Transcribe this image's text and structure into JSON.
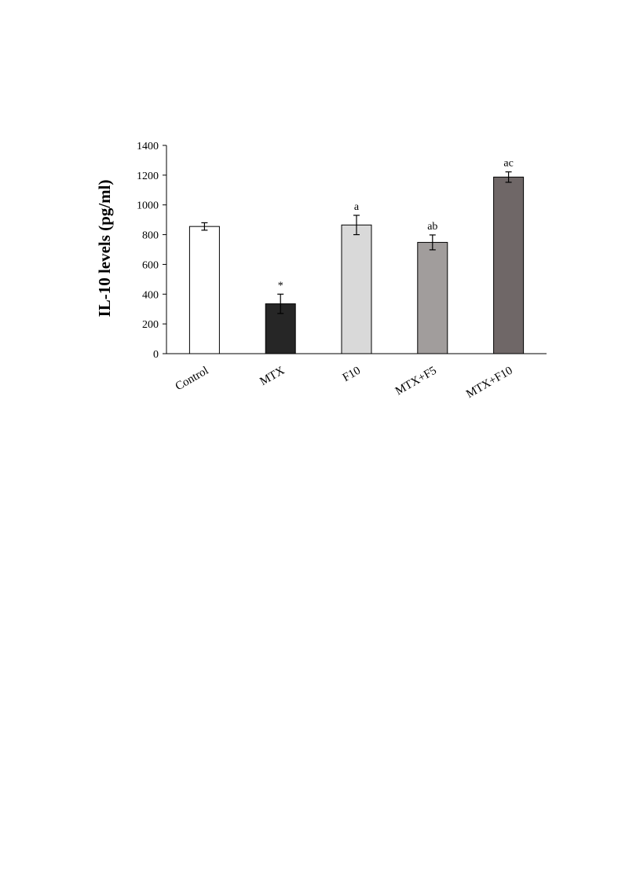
{
  "chart_data": {
    "type": "bar",
    "title": "",
    "xlabel": "",
    "ylabel": "IL-10 levels (pg/ml)",
    "ylim": [
      0,
      1400
    ],
    "yticks": [
      0,
      200,
      400,
      600,
      800,
      1000,
      1200,
      1400
    ],
    "grid": false,
    "legend": "none",
    "categories": [
      "Control",
      "MTX",
      "F10",
      "MTX+F5",
      "MTX+F10"
    ],
    "values": [
      855,
      335,
      865,
      748,
      1187
    ],
    "errors": [
      25,
      65,
      65,
      50,
      35
    ],
    "significance_labels": [
      "",
      "*",
      "a",
      "ab",
      "ac"
    ],
    "bar_colors": [
      "#ffffff",
      "#262626",
      "#d9d9d9",
      "#a19d9c",
      "#6f6767"
    ]
  }
}
